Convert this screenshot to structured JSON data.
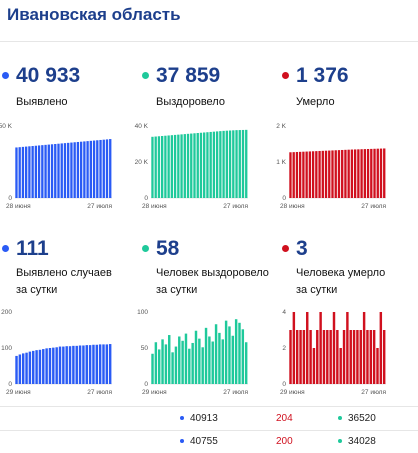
{
  "region_title": "Ивановская область",
  "colors": {
    "blue": "#2a5bf5",
    "green": "#1fc99b",
    "red": "#d0101e",
    "navy": "#1d3f8c",
    "red_text": "#d0101e"
  },
  "cards": [
    {
      "value": "40 933",
      "label": "Выявлено",
      "color": "blue"
    },
    {
      "value": "37 859",
      "label": "Выздоровело",
      "color": "green"
    },
    {
      "value": "1 376",
      "label": "Умерло",
      "color": "red"
    },
    {
      "value": "111",
      "label": "Выявлено случаев\nза сутки",
      "color": "blue"
    },
    {
      "value": "58",
      "label": "Человек выздоровело\nза сутки",
      "color": "green"
    },
    {
      "value": "3",
      "label": "Человека умерло\nза сутки",
      "color": "red"
    }
  ],
  "chart_data": [
    {
      "type": "bar",
      "color": "blue",
      "x_start": "28 июня",
      "x_end": "27 июля",
      "yticks": [
        "50 K",
        "0"
      ],
      "ylim": [
        0,
        50000
      ],
      "values": [
        35100,
        35300,
        35500,
        35700,
        35900,
        36100,
        36300,
        36500,
        36700,
        36900,
        37100,
        37300,
        37500,
        37700,
        37900,
        38100,
        38300,
        38500,
        38700,
        38900,
        39100,
        39300,
        39500,
        39700,
        39900,
        40100,
        40300,
        40500,
        40700,
        40933
      ]
    },
    {
      "type": "bar",
      "color": "green",
      "x_start": "28 июня",
      "x_end": "27 июля",
      "yticks": [
        "40 K",
        "20 K",
        "0"
      ],
      "ylim": [
        0,
        40000
      ],
      "values": [
        34000,
        34150,
        34300,
        34450,
        34600,
        34750,
        34900,
        35050,
        35200,
        35350,
        35500,
        35650,
        35800,
        35950,
        36100,
        36250,
        36400,
        36550,
        36700,
        36850,
        37000,
        37150,
        37300,
        37400,
        37500,
        37600,
        37700,
        37750,
        37800,
        37859
      ]
    },
    {
      "type": "bar",
      "color": "red",
      "x_start": "28 июня",
      "x_end": "27 июля",
      "yticks": [
        "2 K",
        "1 K",
        "0"
      ],
      "ylim": [
        0,
        2000
      ],
      "values": [
        1270,
        1274,
        1278,
        1282,
        1286,
        1290,
        1294,
        1298,
        1302,
        1306,
        1310,
        1314,
        1318,
        1322,
        1326,
        1330,
        1334,
        1338,
        1342,
        1346,
        1349,
        1352,
        1355,
        1358,
        1361,
        1364,
        1367,
        1370,
        1373,
        1376
      ]
    },
    {
      "type": "bar",
      "color": "blue",
      "x_start": "29 июня",
      "x_end": "27 июля",
      "yticks": [
        "200",
        "100",
        "0"
      ],
      "ylim": [
        0,
        200
      ],
      "values": [
        78,
        82,
        85,
        87,
        90,
        92,
        94,
        95,
        97,
        99,
        100,
        101,
        102,
        104,
        104,
        105,
        105,
        106,
        106,
        107,
        107,
        108,
        108,
        109,
        109,
        110,
        110,
        110,
        111
      ]
    },
    {
      "type": "bar",
      "color": "green",
      "x_start": "29 июня",
      "x_end": "27 июля",
      "yticks": [
        "100",
        "50",
        "0"
      ],
      "ylim": [
        0,
        100
      ],
      "values": [
        42,
        58,
        48,
        62,
        55,
        68,
        44,
        52,
        66,
        60,
        70,
        49,
        57,
        74,
        63,
        51,
        78,
        66,
        59,
        83,
        71,
        62,
        88,
        80,
        67,
        90,
        85,
        76,
        58
      ]
    },
    {
      "type": "bar",
      "color": "red",
      "x_start": "29 июня",
      "x_end": "27 июля",
      "yticks": [
        "4",
        "2",
        "0"
      ],
      "ylim": [
        0,
        4
      ],
      "values": [
        3,
        4,
        3,
        3,
        3,
        4,
        3,
        2,
        3,
        4,
        3,
        3,
        3,
        4,
        3,
        2,
        3,
        4,
        3,
        3,
        3,
        3,
        4,
        3,
        3,
        3,
        2,
        4,
        3
      ]
    }
  ],
  "table_rows": [
    {
      "a": "40913",
      "b": "204",
      "c": "36520"
    },
    {
      "a": "40755",
      "b": "200",
      "c": "34028"
    }
  ]
}
